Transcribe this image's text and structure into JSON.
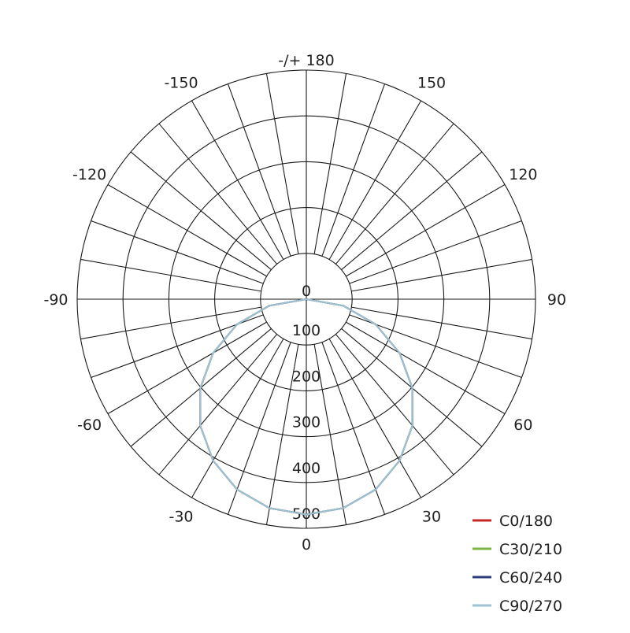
{
  "chart_data": {
    "type": "polar-line",
    "title": "",
    "radial_axis": {
      "range": [
        0,
        500
      ],
      "ticks": [
        0,
        100,
        200,
        300,
        400,
        500
      ],
      "tick_labels": [
        "0",
        "100",
        "200",
        "300",
        "400",
        "500"
      ]
    },
    "angular_axis": {
      "step_deg": 10,
      "labels": [
        {
          "angle": 0,
          "text": "0"
        },
        {
          "angle": 30,
          "text": "30"
        },
        {
          "angle": 60,
          "text": "60"
        },
        {
          "angle": 90,
          "text": "90"
        },
        {
          "angle": 120,
          "text": "120"
        },
        {
          "angle": 150,
          "text": "150"
        },
        {
          "angle": 180,
          "text": "-/+ 180"
        },
        {
          "angle": -150,
          "text": "-150"
        },
        {
          "angle": -120,
          "text": "-120"
        },
        {
          "angle": -90,
          "text": "-90"
        },
        {
          "angle": -60,
          "text": "-60"
        },
        {
          "angle": -30,
          "text": "-30"
        }
      ]
    },
    "grid": true,
    "legend_position": "bottom-right",
    "angles": [
      -90,
      -80,
      -70,
      -60,
      -50,
      -40,
      -30,
      -20,
      -10,
      0,
      10,
      20,
      30,
      40,
      50,
      60,
      70,
      80,
      90
    ],
    "series": [
      {
        "name": "C0/180",
        "color": "#c62828",
        "values": [
          0,
          82,
          161,
          235,
          302,
          360,
          407,
          442,
          463,
          470,
          463,
          442,
          407,
          360,
          302,
          235,
          161,
          82,
          0
        ]
      },
      {
        "name": "C30/210",
        "color": "#7cb342",
        "values": [
          0,
          82,
          161,
          235,
          302,
          360,
          407,
          442,
          463,
          470,
          463,
          442,
          407,
          360,
          302,
          235,
          161,
          82,
          0
        ]
      },
      {
        "name": "C60/240",
        "color": "#2c3e7a",
        "values": [
          0,
          82,
          161,
          235,
          302,
          360,
          407,
          442,
          463,
          470,
          463,
          442,
          407,
          360,
          302,
          235,
          161,
          82,
          0
        ]
      },
      {
        "name": "C90/270",
        "color": "#9cc2d4",
        "values": [
          0,
          82,
          161,
          235,
          302,
          360,
          407,
          442,
          463,
          470,
          463,
          442,
          407,
          360,
          302,
          235,
          161,
          82,
          0
        ]
      }
    ]
  }
}
